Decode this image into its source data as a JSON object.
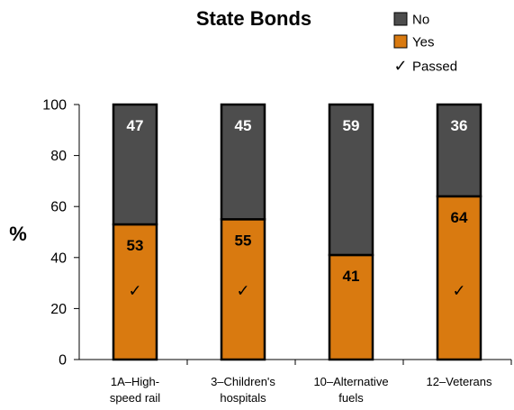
{
  "chart_data": {
    "type": "bar",
    "stacked": true,
    "title": "State Bonds",
    "ylabel": "%",
    "xlabel": "",
    "ylim": [
      0,
      100
    ],
    "yticks": [
      0,
      20,
      40,
      60,
      80,
      100
    ],
    "categories": [
      [
        "1A–High-",
        "speed rail"
      ],
      [
        "3–Children's",
        "hospitals"
      ],
      [
        "10–Alternative",
        "fuels"
      ],
      [
        "12–Veterans"
      ]
    ],
    "series": [
      {
        "name": "Yes",
        "values": [
          53,
          55,
          41,
          64
        ],
        "color": "#D97A10",
        "label_color": "#000000"
      },
      {
        "name": "No",
        "values": [
          47,
          45,
          59,
          36
        ],
        "color": "#4D4D4D",
        "label_color": "#FFFFFF"
      }
    ],
    "passed": [
      true,
      true,
      false,
      true
    ],
    "legend": {
      "placement": "top-right",
      "entries": [
        {
          "label": "No",
          "color": "#4D4D4D",
          "marker": "box"
        },
        {
          "label": "Yes",
          "color": "#D97A10",
          "marker": "box"
        },
        {
          "label": "Passed",
          "marker": "check",
          "symbol": "✓"
        }
      ]
    },
    "grid": false
  }
}
